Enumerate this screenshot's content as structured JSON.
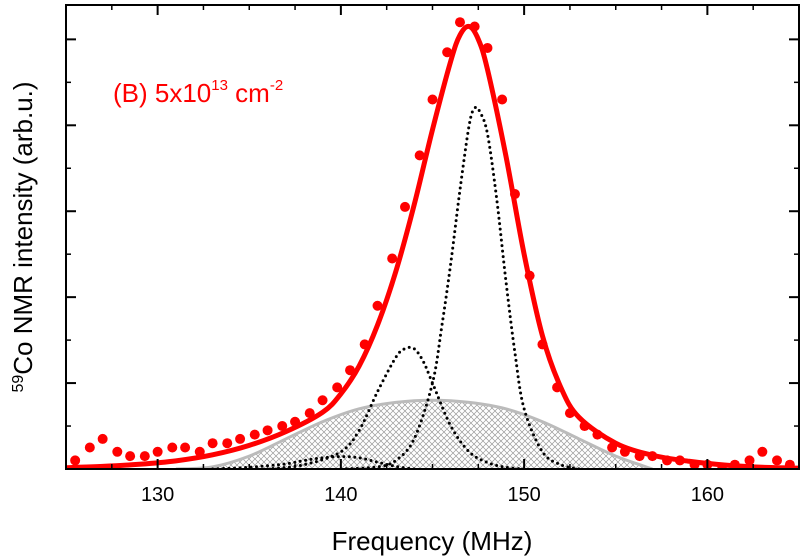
{
  "chart_data": {
    "type": "line",
    "xlabel": "Frequency (MHz)",
    "ylabel": {
      "iso_mass": "59",
      "text": "Co NMR intensity (arb.u.)"
    },
    "annotation": {
      "prefix": "(B) 5x10",
      "exponent": "13",
      "unit": " cm",
      "unit_exponent": "-2"
    },
    "xlim": [
      125,
      165
    ],
    "ylim": [
      0,
      1.08
    ],
    "x_ticks": [
      130,
      140,
      150,
      160
    ],
    "x_minor_ticks": [
      125,
      127.5,
      132.5,
      135,
      137.5,
      142.5,
      145,
      147.5,
      152.5,
      155,
      157.5,
      162.5,
      165
    ],
    "y_ticks": [
      0,
      0.2,
      0.4,
      0.6,
      0.8,
      1.0
    ],
    "y_tick_labels_shown": false,
    "grid": false,
    "colors": {
      "fit": "#ff0000",
      "data": "#ff0000",
      "components": "#000000",
      "background": "#bbbbbb",
      "annotation": "#ff0000"
    },
    "series": [
      {
        "role": "fit",
        "style": "solid-thick",
        "x": [
          125,
          127,
          129,
          131,
          133,
          135,
          137,
          139,
          140,
          141,
          142,
          143,
          144,
          145,
          146,
          146.5,
          147,
          147.5,
          148,
          149,
          150,
          151,
          152,
          153,
          155,
          157,
          159,
          161,
          163,
          165
        ],
        "y": [
          0.003,
          0.006,
          0.011,
          0.019,
          0.033,
          0.055,
          0.087,
          0.132,
          0.175,
          0.24,
          0.335,
          0.46,
          0.615,
          0.79,
          0.95,
          1.01,
          1.03,
          1.0,
          0.93,
          0.73,
          0.5,
          0.31,
          0.19,
          0.12,
          0.06,
          0.032,
          0.018,
          0.009,
          0.004,
          0.002
        ]
      },
      {
        "role": "data",
        "style": "markers",
        "x": [
          125.5,
          126.3,
          127.0,
          127.8,
          128.5,
          129.3,
          130.0,
          130.8,
          131.5,
          132.3,
          133.0,
          133.8,
          134.5,
          135.3,
          136.0,
          136.8,
          137.5,
          138.3,
          139.0,
          139.8,
          140.5,
          141.3,
          142.0,
          142.8,
          143.5,
          144.3,
          145.0,
          145.8,
          146.5,
          147.3,
          148.0,
          148.8,
          149.5,
          150.3,
          151.0,
          151.8,
          152.5,
          153.3,
          154.0,
          154.8,
          155.5,
          156.3,
          157.0,
          157.8,
          158.5,
          159.3,
          160.0,
          160.8,
          161.5,
          162.3,
          163.0,
          163.8,
          164.5
        ],
        "y": [
          0.02,
          0.05,
          0.07,
          0.04,
          0.03,
          0.03,
          0.04,
          0.05,
          0.05,
          0.04,
          0.06,
          0.06,
          0.07,
          0.08,
          0.09,
          0.1,
          0.11,
          0.13,
          0.16,
          0.19,
          0.23,
          0.29,
          0.38,
          0.49,
          0.61,
          0.73,
          0.86,
          0.97,
          1.04,
          1.03,
          0.98,
          0.86,
          0.64,
          0.45,
          0.29,
          0.19,
          0.13,
          0.1,
          0.08,
          0.05,
          0.04,
          0.03,
          0.03,
          0.02,
          0.02,
          0.01,
          0.01,
          0.0,
          0.01,
          0.02,
          0.04,
          0.02,
          0.01
        ]
      },
      {
        "role": "component",
        "style": "dotted",
        "x": [
          140,
          142,
          143,
          144,
          145,
          145.5,
          146,
          146.5,
          147,
          147.3,
          147.6,
          148,
          148.5,
          149,
          149.5,
          150,
          151,
          152,
          153
        ],
        "y": [
          0.0,
          0.005,
          0.02,
          0.07,
          0.2,
          0.33,
          0.48,
          0.65,
          0.8,
          0.84,
          0.83,
          0.78,
          0.63,
          0.44,
          0.27,
          0.14,
          0.04,
          0.01,
          0.0
        ]
      },
      {
        "role": "component",
        "style": "dotted",
        "x": [
          136,
          138,
          140,
          141,
          142,
          143,
          143.5,
          144,
          144.5,
          145,
          146,
          147,
          148,
          149,
          150
        ],
        "y": [
          0.0,
          0.01,
          0.04,
          0.09,
          0.18,
          0.26,
          0.28,
          0.28,
          0.25,
          0.2,
          0.1,
          0.04,
          0.015,
          0.004,
          0.0
        ]
      },
      {
        "role": "component",
        "style": "dotted",
        "x": [
          133,
          135,
          137,
          138,
          139,
          140,
          141,
          142,
          143,
          144
        ],
        "y": [
          0.0,
          0.004,
          0.012,
          0.02,
          0.026,
          0.029,
          0.026,
          0.016,
          0.006,
          0.0
        ]
      },
      {
        "role": "background",
        "style": "solid-gray-hatched",
        "x": [
          131,
          133,
          135,
          137,
          139,
          141,
          143,
          145,
          147,
          149,
          151,
          153,
          155,
          157
        ],
        "y": [
          0.0,
          0.005,
          0.03,
          0.07,
          0.11,
          0.14,
          0.155,
          0.16,
          0.155,
          0.14,
          0.11,
          0.07,
          0.03,
          0.0
        ]
      }
    ]
  }
}
